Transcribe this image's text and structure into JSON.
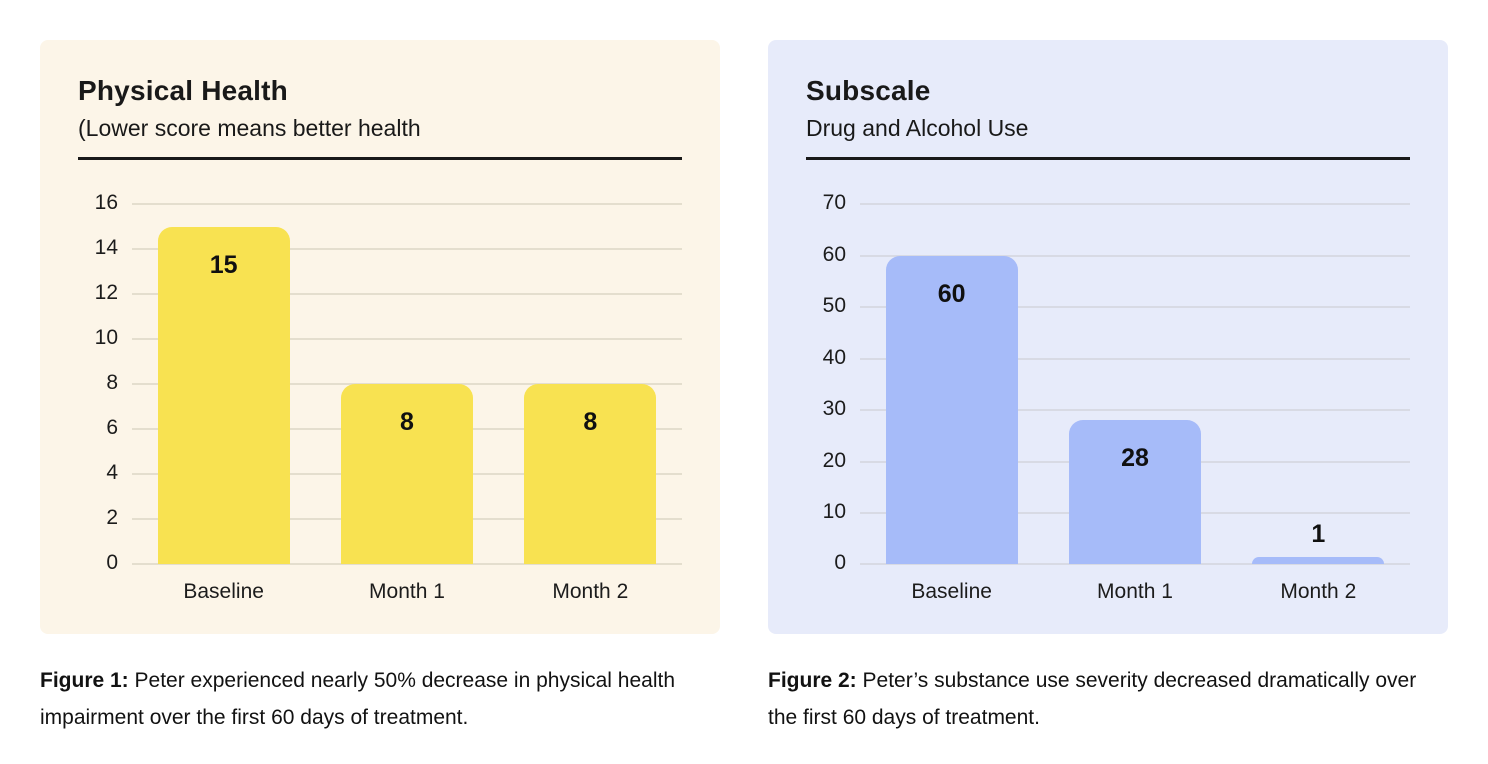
{
  "chart_data": [
    {
      "type": "bar",
      "title": "Physical Health",
      "subtitle": "(Lower score means better health",
      "categories": [
        "Baseline",
        "Month 1",
        "Month 2"
      ],
      "values": [
        15,
        8,
        8
      ],
      "xlabel": "",
      "ylabel": "",
      "ylim": [
        0,
        16
      ],
      "ytick_step": 2,
      "grid": true,
      "legend": "none",
      "card_bg": "#FCF5E8",
      "bar_color": "#F8E251",
      "gridline_color": "#E4DECE"
    },
    {
      "type": "bar",
      "title": "Subscale",
      "subtitle": "Drug and Alcohol Use",
      "categories": [
        "Baseline",
        "Month 1",
        "Month 2"
      ],
      "values": [
        60,
        28,
        1
      ],
      "xlabel": "",
      "ylabel": "",
      "ylim": [
        0,
        70
      ],
      "ytick_step": 10,
      "grid": true,
      "legend": "none",
      "card_bg": "#E7EBFA",
      "bar_color": "#A6BBF9",
      "gridline_color": "#D8DAE4"
    }
  ],
  "captions": [
    {
      "label": "Figure 1:",
      "text": "Peter experienced nearly 50% decrease in physical health impairment over the first 60 days of treatment."
    },
    {
      "label": "Figure 2:",
      "text": "Peter’s substance use severity decreased dramatically over the first 60 days of treatment."
    }
  ],
  "colors": {
    "page_background": "#ffffff",
    "text": "#191919",
    "divider": "#191919"
  }
}
